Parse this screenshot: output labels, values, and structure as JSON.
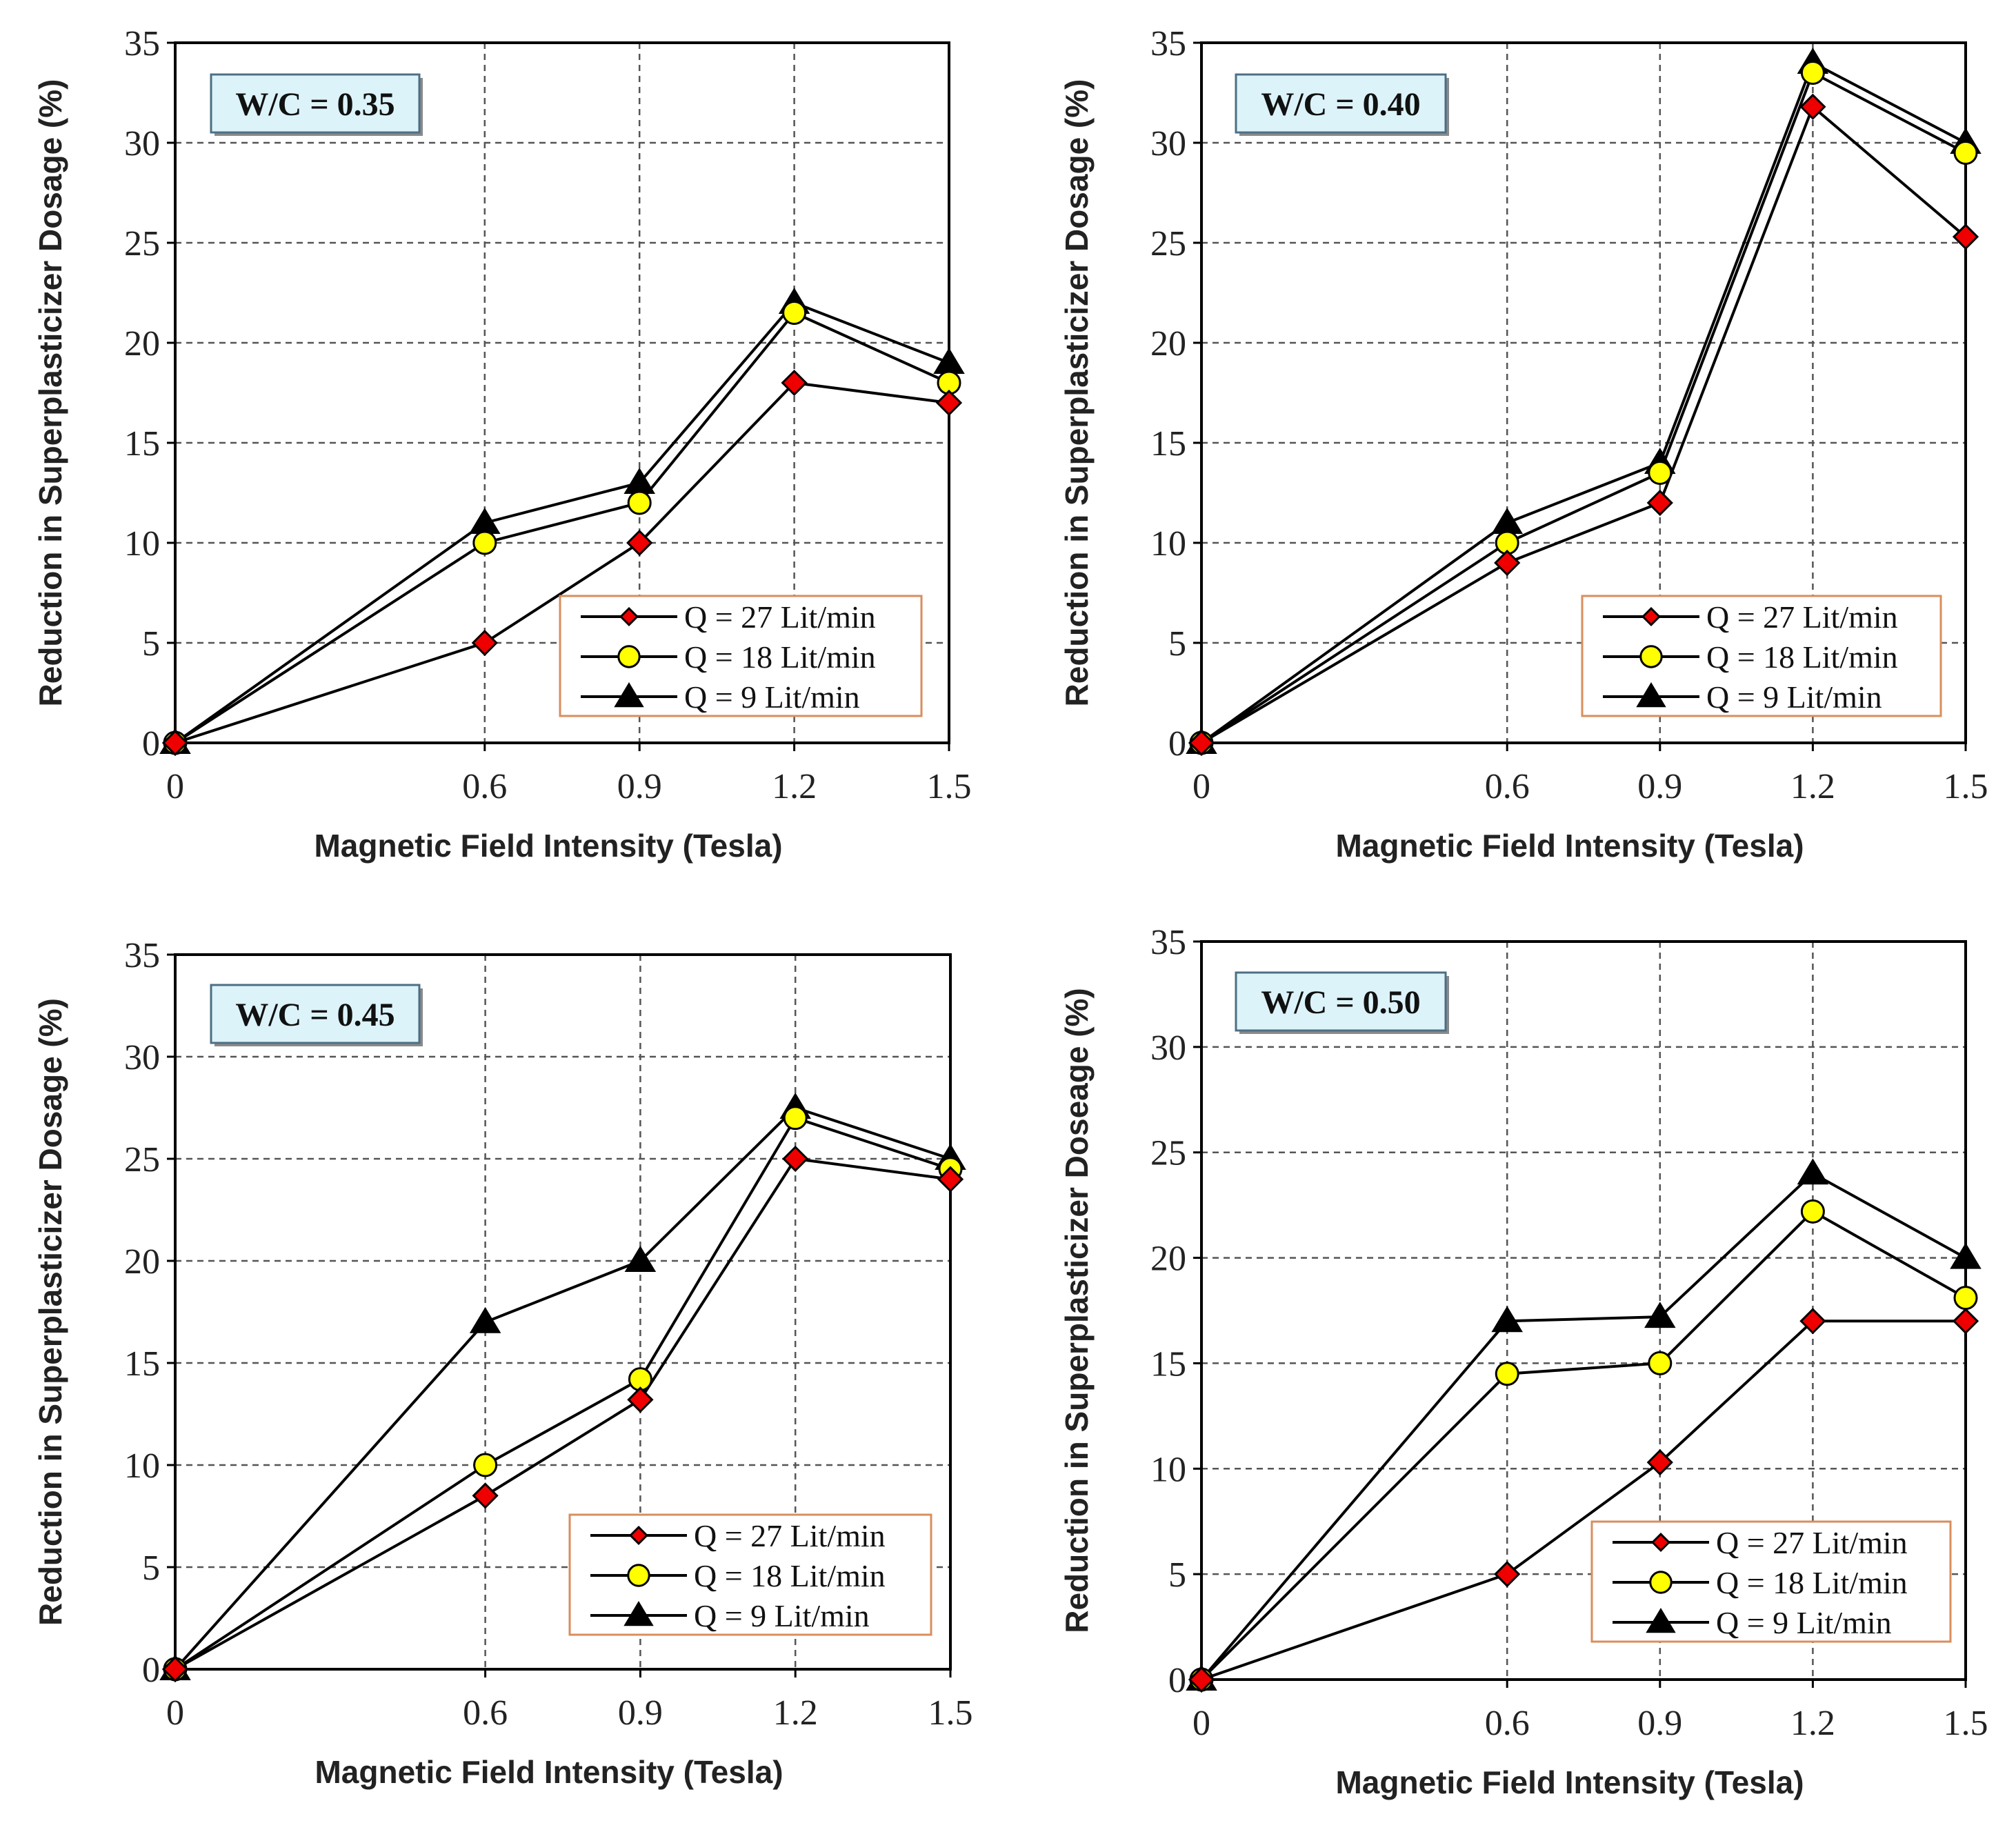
{
  "chart_data": [
    {
      "type": "line",
      "wc_label": "W/C = 0.35",
      "xlabel": "Magnetic Field Intensity (Tesla)",
      "ylabel": "Reduction  in Superplasticizer Dosage (%)",
      "x_ticks": [
        "0",
        "0.6",
        "0.9",
        "1.2",
        "1.5"
      ],
      "y_ticks": [
        "0",
        "5",
        "10",
        "15",
        "20",
        "25",
        "30",
        "35"
      ],
      "ylim": [
        0,
        35
      ],
      "grid": true,
      "legend_position": "bottom-right",
      "series": [
        {
          "name": "Q = 27 Lit/min",
          "marker": "diamond",
          "values": [
            0,
            5,
            10,
            18,
            17
          ]
        },
        {
          "name": "Q = 18 Lit/min",
          "marker": "circle",
          "values": [
            0,
            10,
            12,
            21.5,
            18
          ]
        },
        {
          "name": "Q = 9 Lit/min",
          "marker": "triangle",
          "values": [
            0,
            11,
            13,
            22,
            19
          ]
        }
      ]
    },
    {
      "type": "line",
      "wc_label": "W/C = 0.40",
      "xlabel": "Magnetic Field Intensity (Tesla)",
      "ylabel": "Reduction in Superplasticizer Dosage (%)",
      "x_ticks": [
        "0",
        "0.6",
        "0.9",
        "1.2",
        "1.5"
      ],
      "y_ticks": [
        "0",
        "5",
        "10",
        "15",
        "20",
        "25",
        "30",
        "35"
      ],
      "ylim": [
        0,
        35
      ],
      "grid": true,
      "legend_position": "bottom-right",
      "series": [
        {
          "name": "Q = 27 Lit/min",
          "marker": "diamond",
          "values": [
            0,
            9,
            12,
            31.8,
            25.3
          ]
        },
        {
          "name": "Q = 18 Lit/min",
          "marker": "circle",
          "values": [
            0,
            10,
            13.5,
            33.5,
            29.5
          ]
        },
        {
          "name": "Q = 9 Lit/min",
          "marker": "triangle",
          "values": [
            0,
            11,
            14,
            34,
            30
          ]
        }
      ]
    },
    {
      "type": "line",
      "wc_label": "W/C = 0.45",
      "xlabel": "Magnetic Field Intensity (Tesla)",
      "ylabel": "Reduction  in Superplasticizer Dosage (%)",
      "x_ticks": [
        "0",
        "0.6",
        "0.9",
        "1.2",
        "1.5"
      ],
      "y_ticks": [
        "0",
        "5",
        "10",
        "15",
        "20",
        "25",
        "30",
        "35"
      ],
      "ylim": [
        0,
        35
      ],
      "grid": true,
      "legend_position": "bottom-right",
      "series": [
        {
          "name": "Q = 27 Lit/min",
          "marker": "diamond",
          "values": [
            0,
            8.5,
            13.2,
            25,
            24
          ]
        },
        {
          "name": "Q = 18 Lit/min",
          "marker": "circle",
          "values": [
            0,
            10,
            14.2,
            27,
            24.5
          ]
        },
        {
          "name": "Q = 9 Lit/min",
          "marker": "triangle",
          "values": [
            0,
            17,
            20,
            27.5,
            25
          ]
        }
      ]
    },
    {
      "type": "line",
      "wc_label": "W/C = 0.50",
      "xlabel": "Magnetic Field Intensity (Tesla)",
      "ylabel": "Reduction  in Superplasticizer Doseage (%)",
      "x_ticks": [
        "0",
        "0.6",
        "0.9",
        "1.2",
        "1.5"
      ],
      "y_ticks": [
        "0",
        "5",
        "10",
        "15",
        "20",
        "25",
        "30",
        "35"
      ],
      "ylim": [
        0,
        35
      ],
      "grid": true,
      "legend_position": "bottom-right",
      "series": [
        {
          "name": "Q = 27 Lit/min",
          "marker": "diamond",
          "values": [
            0,
            5,
            10.3,
            17,
            17
          ]
        },
        {
          "name": "Q = 18 Lit/min",
          "marker": "circle",
          "values": [
            0,
            14.5,
            15,
            22.2,
            18.1
          ]
        },
        {
          "name": "Q = 9 Lit/min",
          "marker": "triangle",
          "values": [
            0,
            17,
            17.2,
            24,
            20
          ]
        }
      ]
    }
  ],
  "colors": {
    "diamond_fill": "#ee0000",
    "circle_fill": "#ffff00",
    "triangle_fill": "#000000",
    "line": "#000000",
    "grid": "#555555",
    "wc_box_fill": "#dcf3f9",
    "wc_box_border": "#4d6f84",
    "legend_border": "#d98e5c",
    "legend_fill": "#ffffff"
  }
}
